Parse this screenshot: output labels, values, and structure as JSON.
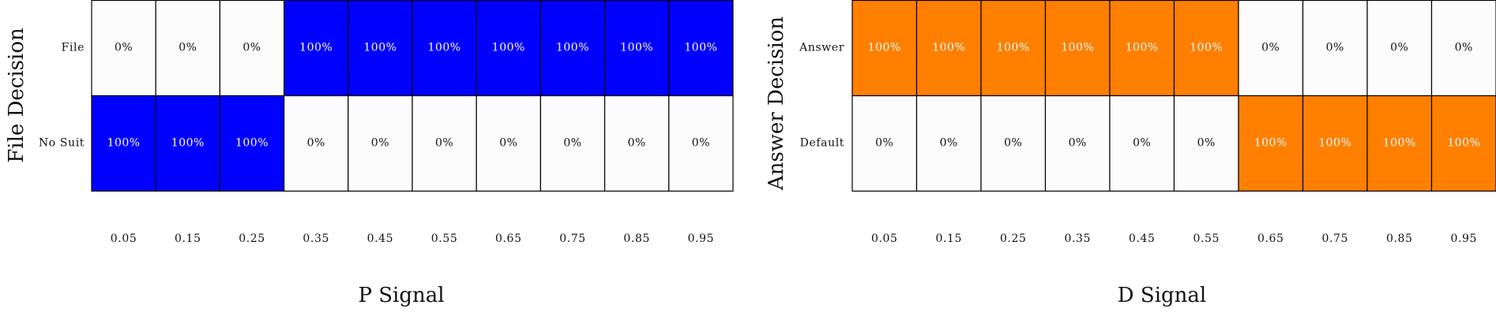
{
  "colors": {
    "p_signal_fill": "#0000ff",
    "d_signal_fill": "#ff7f00",
    "empty_fill": "#fcfcfc",
    "on_text": "#ffffff",
    "off_text": "#111111",
    "border": "#000000"
  },
  "chart_data": [
    {
      "type": "heatmap",
      "title": "",
      "xlabel": "P Signal",
      "ylabel": "File Decision",
      "x": [
        "0.05",
        "0.15",
        "0.25",
        "0.35",
        "0.45",
        "0.55",
        "0.65",
        "0.75",
        "0.85",
        "0.95"
      ],
      "y": [
        "File",
        "No Suit"
      ],
      "values": [
        [
          0,
          0,
          0,
          100,
          100,
          100,
          100,
          100,
          100,
          100
        ],
        [
          100,
          100,
          100,
          0,
          0,
          0,
          0,
          0,
          0,
          0
        ]
      ],
      "value_format": "percent",
      "color": "#0000ff"
    },
    {
      "type": "heatmap",
      "title": "",
      "xlabel": "D Signal",
      "ylabel": "Answer Decision",
      "x": [
        "0.05",
        "0.15",
        "0.25",
        "0.35",
        "0.45",
        "0.55",
        "0.65",
        "0.75",
        "0.85",
        "0.95"
      ],
      "y": [
        "Answer",
        "Default"
      ],
      "values": [
        [
          100,
          100,
          100,
          100,
          100,
          100,
          0,
          0,
          0,
          0
        ],
        [
          0,
          0,
          0,
          0,
          0,
          0,
          100,
          100,
          100,
          100
        ]
      ],
      "value_format": "percent",
      "color": "#ff7f00"
    }
  ]
}
